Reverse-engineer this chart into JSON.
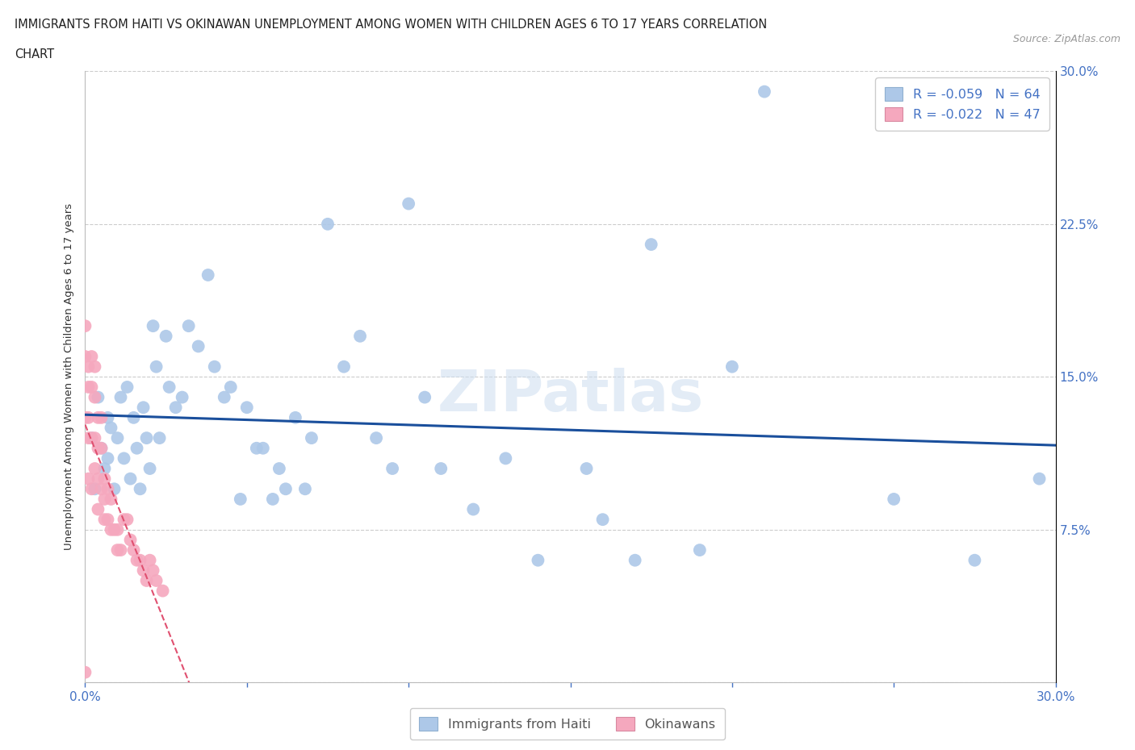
{
  "title_line1": "IMMIGRANTS FROM HAITI VS OKINAWAN UNEMPLOYMENT AMONG WOMEN WITH CHILDREN AGES 6 TO 17 YEARS CORRELATION",
  "title_line2": "CHART",
  "source": "Source: ZipAtlas.com",
  "ylabel": "Unemployment Among Women with Children Ages 6 to 17 years",
  "xlim": [
    0.0,
    0.3
  ],
  "ylim": [
    0.0,
    0.3
  ],
  "legend_label1": "Immigrants from Haiti",
  "legend_label2": "Okinawans",
  "blue_color": "#adc8e8",
  "pink_color": "#f5a8be",
  "blue_line_color": "#1a4f9c",
  "pink_line_color": "#e05070",
  "watermark": "ZIPatlas",
  "haiti_x": [
    0.002,
    0.003,
    0.004,
    0.005,
    0.006,
    0.007,
    0.007,
    0.008,
    0.009,
    0.01,
    0.011,
    0.012,
    0.013,
    0.014,
    0.015,
    0.016,
    0.017,
    0.018,
    0.019,
    0.02,
    0.021,
    0.022,
    0.023,
    0.025,
    0.026,
    0.028,
    0.03,
    0.032,
    0.035,
    0.038,
    0.04,
    0.043,
    0.045,
    0.048,
    0.05,
    0.053,
    0.055,
    0.058,
    0.06,
    0.062,
    0.065,
    0.068,
    0.07,
    0.075,
    0.08,
    0.085,
    0.09,
    0.095,
    0.1,
    0.105,
    0.11,
    0.12,
    0.13,
    0.14,
    0.155,
    0.16,
    0.17,
    0.175,
    0.19,
    0.2,
    0.21,
    0.25,
    0.275,
    0.295
  ],
  "haiti_y": [
    0.12,
    0.095,
    0.14,
    0.115,
    0.105,
    0.13,
    0.11,
    0.125,
    0.095,
    0.12,
    0.14,
    0.11,
    0.145,
    0.1,
    0.13,
    0.115,
    0.095,
    0.135,
    0.12,
    0.105,
    0.175,
    0.155,
    0.12,
    0.17,
    0.145,
    0.135,
    0.14,
    0.175,
    0.165,
    0.2,
    0.155,
    0.14,
    0.145,
    0.09,
    0.135,
    0.115,
    0.115,
    0.09,
    0.105,
    0.095,
    0.13,
    0.095,
    0.12,
    0.225,
    0.155,
    0.17,
    0.12,
    0.105,
    0.235,
    0.14,
    0.105,
    0.085,
    0.11,
    0.06,
    0.105,
    0.08,
    0.06,
    0.215,
    0.065,
    0.155,
    0.29,
    0.09,
    0.06,
    0.1
  ],
  "okinawa_x": [
    0.0,
    0.0,
    0.0,
    0.0,
    0.001,
    0.001,
    0.001,
    0.001,
    0.001,
    0.002,
    0.002,
    0.002,
    0.002,
    0.003,
    0.003,
    0.003,
    0.003,
    0.004,
    0.004,
    0.004,
    0.004,
    0.005,
    0.005,
    0.005,
    0.006,
    0.006,
    0.006,
    0.007,
    0.007,
    0.008,
    0.008,
    0.009,
    0.01,
    0.01,
    0.011,
    0.012,
    0.013,
    0.014,
    0.015,
    0.016,
    0.017,
    0.018,
    0.019,
    0.02,
    0.021,
    0.022,
    0.024
  ],
  "okinawa_y": [
    0.175,
    0.16,
    0.13,
    0.005,
    0.155,
    0.145,
    0.13,
    0.12,
    0.1,
    0.16,
    0.145,
    0.12,
    0.095,
    0.155,
    0.14,
    0.12,
    0.105,
    0.13,
    0.115,
    0.1,
    0.085,
    0.13,
    0.115,
    0.095,
    0.1,
    0.09,
    0.08,
    0.095,
    0.08,
    0.09,
    0.075,
    0.075,
    0.075,
    0.065,
    0.065,
    0.08,
    0.08,
    0.07,
    0.065,
    0.06,
    0.06,
    0.055,
    0.05,
    0.06,
    0.055,
    0.05,
    0.045
  ]
}
